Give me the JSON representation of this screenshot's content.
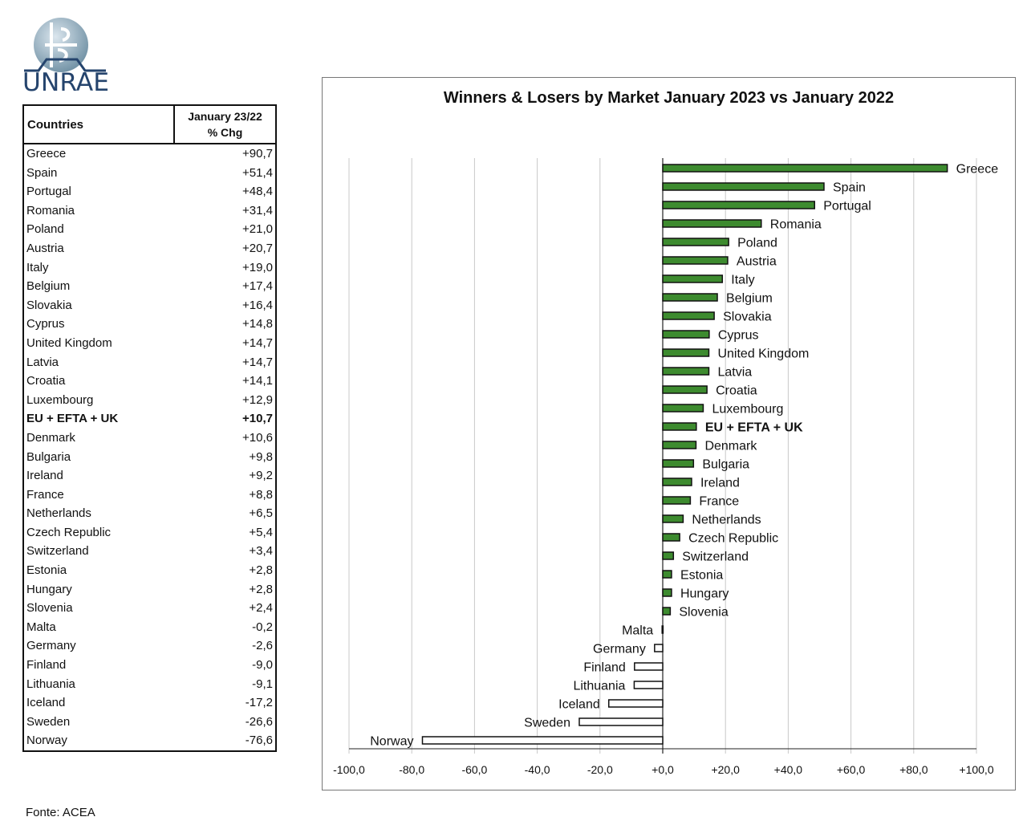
{
  "brand": {
    "name": "UNRAE"
  },
  "table": {
    "header_country": "Countries",
    "header_value_line1": "January 23/22",
    "header_value_line2": "% Chg",
    "rows": [
      {
        "country": "Greece",
        "value": "+90,7"
      },
      {
        "country": "Spain",
        "value": "+51,4"
      },
      {
        "country": "Portugal",
        "value": "+48,4"
      },
      {
        "country": "Romania",
        "value": "+31,4"
      },
      {
        "country": "Poland",
        "value": "+21,0"
      },
      {
        "country": "Austria",
        "value": "+20,7"
      },
      {
        "country": "Italy",
        "value": "+19,0"
      },
      {
        "country": "Belgium",
        "value": "+17,4"
      },
      {
        "country": "Slovakia",
        "value": "+16,4"
      },
      {
        "country": "Cyprus",
        "value": "+14,8"
      },
      {
        "country": "United Kingdom",
        "value": "+14,7"
      },
      {
        "country": "Latvia",
        "value": "+14,7"
      },
      {
        "country": "Croatia",
        "value": "+14,1"
      },
      {
        "country": "Luxembourg",
        "value": "+12,9"
      },
      {
        "country": "EU + EFTA + UK",
        "value": "+10,7",
        "bold": true
      },
      {
        "country": "Denmark",
        "value": "+10,6"
      },
      {
        "country": "Bulgaria",
        "value": "+9,8"
      },
      {
        "country": "Ireland",
        "value": "+9,2"
      },
      {
        "country": "France",
        "value": "+8,8"
      },
      {
        "country": "Netherlands",
        "value": "+6,5"
      },
      {
        "country": "Czech Republic",
        "value": "+5,4"
      },
      {
        "country": "Switzerland",
        "value": "+3,4"
      },
      {
        "country": "Estonia",
        "value": "+2,8"
      },
      {
        "country": "Hungary",
        "value": "+2,8"
      },
      {
        "country": "Slovenia",
        "value": "+2,4"
      },
      {
        "country": "Malta",
        "value": "-0,2"
      },
      {
        "country": "Germany",
        "value": "-2,6"
      },
      {
        "country": "Finland",
        "value": "-9,0"
      },
      {
        "country": "Lithuania",
        "value": "-9,1"
      },
      {
        "country": "Iceland",
        "value": "-17,2"
      },
      {
        "country": "Sweden",
        "value": "-26,6"
      },
      {
        "country": "Norway",
        "value": "-76,6"
      }
    ]
  },
  "chart_data": {
    "type": "bar",
    "orientation": "horizontal",
    "title": "Winners & Losers by Market January 2023 vs January 2022",
    "xlabel": "",
    "ylabel": "",
    "xlim": [
      -100,
      100
    ],
    "x_ticks": [
      -100,
      -80,
      -60,
      -40,
      -20,
      0,
      20,
      40,
      60,
      80,
      100
    ],
    "x_tick_labels": [
      "-100,0",
      "-80,0",
      "-60,0",
      "-40,0",
      "-20,0",
      "+0,0",
      "+20,0",
      "+40,0",
      "+60,0",
      "+80,0",
      "+100,0"
    ],
    "grid": "vertical",
    "bold_category": "EU + EFTA + UK",
    "positive_color": "#3d8b2f",
    "negative_color": "#ffffff",
    "categories": [
      "Greece",
      "Spain",
      "Portugal",
      "Romania",
      "Poland",
      "Austria",
      "Italy",
      "Belgium",
      "Slovakia",
      "Cyprus",
      "United Kingdom",
      "Latvia",
      "Croatia",
      "Luxembourg",
      "EU + EFTA + UK",
      "Denmark",
      "Bulgaria",
      "Ireland",
      "France",
      "Netherlands",
      "Czech Republic",
      "Switzerland",
      "Estonia",
      "Hungary",
      "Slovenia",
      "Malta",
      "Germany",
      "Finland",
      "Lithuania",
      "Iceland",
      "Sweden",
      "Norway"
    ],
    "values": [
      90.7,
      51.4,
      48.4,
      31.4,
      21.0,
      20.7,
      19.0,
      17.4,
      16.4,
      14.8,
      14.7,
      14.7,
      14.1,
      12.9,
      10.7,
      10.6,
      9.8,
      9.2,
      8.8,
      6.5,
      5.4,
      3.4,
      2.8,
      2.8,
      2.4,
      -0.2,
      -2.6,
      -9.0,
      -9.1,
      -17.2,
      -26.6,
      -76.6
    ]
  },
  "source": "Fonte: ACEA"
}
